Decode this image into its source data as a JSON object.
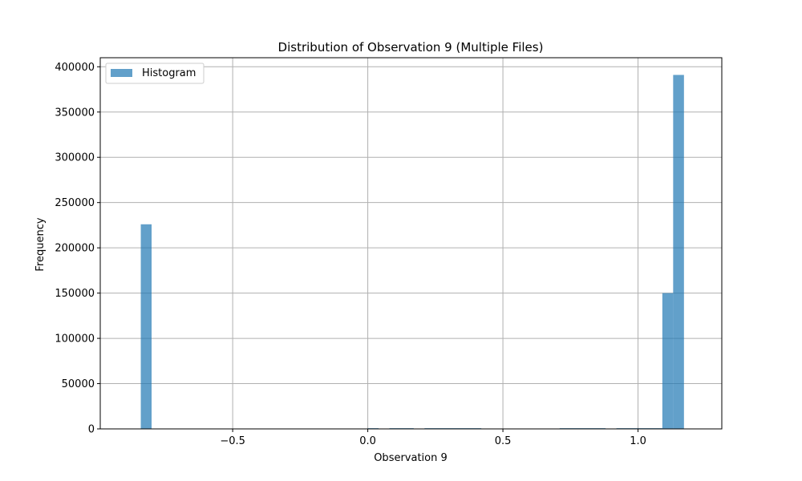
{
  "chart_data": {
    "type": "bar",
    "title": "Distribution of Observation 9 (Multiple Files)",
    "xlabel": "Observation 9",
    "ylabel": "Frequency",
    "xlim": [
      -0.99,
      1.31
    ],
    "ylim": [
      0,
      410000
    ],
    "xticks": [
      -0.5,
      0.0,
      0.5,
      1.0
    ],
    "xtick_labels": [
      "−0.5",
      "0.0",
      "0.5",
      "1.0"
    ],
    "yticks": [
      0,
      50000,
      100000,
      150000,
      200000,
      250000,
      300000,
      350000,
      400000
    ],
    "ytick_labels": [
      "0",
      "50000",
      "100000",
      "150000",
      "200000",
      "250000",
      "300000",
      "350000",
      "400000"
    ],
    "grid": true,
    "legend_position": "top-left",
    "bar_color": "#1f77b4",
    "bar_opacity": 0.7,
    "series": [
      {
        "name": "Histogram",
        "bins": [
          {
            "x0": -0.84,
            "x1": -0.8,
            "count": 226000
          },
          {
            "x0": 0.0,
            "x1": 0.04,
            "count": 800
          },
          {
            "x0": 0.08,
            "x1": 0.17,
            "count": 800
          },
          {
            "x0": 0.21,
            "x1": 0.42,
            "count": 800
          },
          {
            "x0": 0.71,
            "x1": 0.88,
            "count": 800
          },
          {
            "x0": 0.92,
            "x1": 1.09,
            "count": 800
          },
          {
            "x0": 1.09,
            "x1": 1.13,
            "count": 150000
          },
          {
            "x0": 1.13,
            "x1": 1.17,
            "count": 391000
          }
        ]
      }
    ]
  }
}
